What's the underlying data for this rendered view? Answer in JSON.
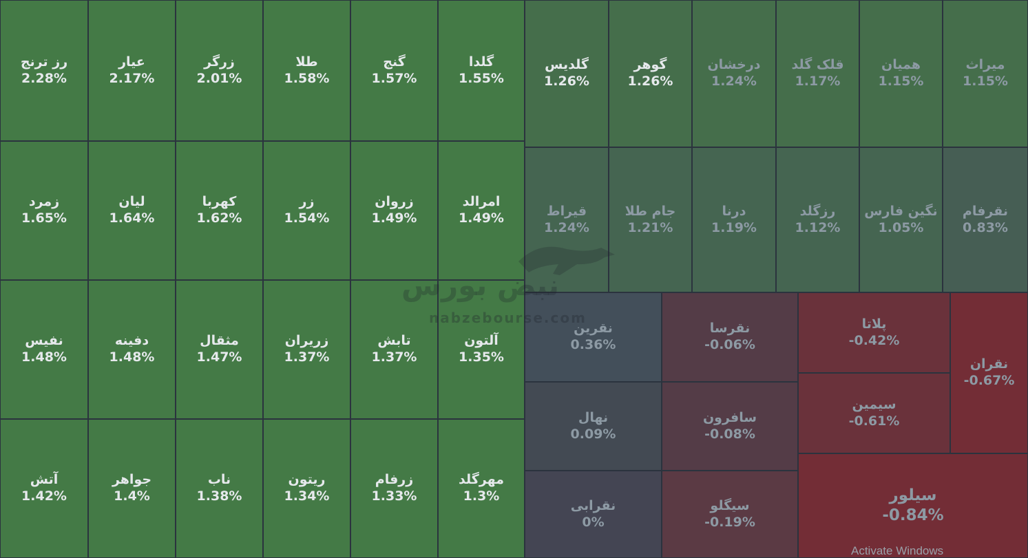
{
  "watermark": {
    "brand": "نبض بورس",
    "site": "nabzebourse.com"
  },
  "os_notice": "Activate Windows",
  "colors": {
    "background": "#2d3540",
    "green_strong": "#447a46",
    "green_mid": "#456e4b",
    "green_soft": "#456551",
    "green_faint": "#465e54",
    "slate_blue": "#434f5a",
    "slate": "#434a53",
    "neutral": "#444553",
    "red_faint": "#543c47",
    "red_soft": "#5b3a44",
    "red_mid": "#6a323b",
    "red_strong": "#732d36",
    "text_bright": "#e6e9ec",
    "text_dim": "#8d9aa4"
  },
  "tiles": [
    {
      "symbol": "رز ترنج",
      "change": "2.28%",
      "c": "green_strong",
      "t": "text_bright"
    },
    {
      "symbol": "عیار",
      "change": "2.17%",
      "c": "green_strong",
      "t": "text_bright"
    },
    {
      "symbol": "زرگر",
      "change": "2.01%",
      "c": "green_strong",
      "t": "text_bright"
    },
    {
      "symbol": "طلا",
      "change": "1.58%",
      "c": "green_strong",
      "t": "text_bright"
    },
    {
      "symbol": "گنج",
      "change": "1.57%",
      "c": "green_strong",
      "t": "text_bright"
    },
    {
      "symbol": "گلدا",
      "change": "1.55%",
      "c": "green_strong",
      "t": "text_bright"
    },
    {
      "symbol": "زمرد",
      "change": "1.65%",
      "c": "green_strong",
      "t": "text_bright"
    },
    {
      "symbol": "لیان",
      "change": "1.64%",
      "c": "green_strong",
      "t": "text_bright"
    },
    {
      "symbol": "کهربا",
      "change": "1.62%",
      "c": "green_strong",
      "t": "text_bright"
    },
    {
      "symbol": "زر",
      "change": "1.54%",
      "c": "green_strong",
      "t": "text_bright"
    },
    {
      "symbol": "زروان",
      "change": "1.49%",
      "c": "green_strong",
      "t": "text_bright"
    },
    {
      "symbol": "امرالد",
      "change": "1.49%",
      "c": "green_strong",
      "t": "text_bright"
    },
    {
      "symbol": "نفیس",
      "change": "1.48%",
      "c": "green_strong",
      "t": "text_bright"
    },
    {
      "symbol": "دفینه",
      "change": "1.48%",
      "c": "green_strong",
      "t": "text_bright"
    },
    {
      "symbol": "مثقال",
      "change": "1.47%",
      "c": "green_strong",
      "t": "text_bright"
    },
    {
      "symbol": "زریران",
      "change": "1.37%",
      "c": "green_strong",
      "t": "text_bright"
    },
    {
      "symbol": "تابش",
      "change": "1.37%",
      "c": "green_strong",
      "t": "text_bright"
    },
    {
      "symbol": "آلتون",
      "change": "1.35%",
      "c": "green_strong",
      "t": "text_bright"
    },
    {
      "symbol": "آتش",
      "change": "1.42%",
      "c": "green_strong",
      "t": "text_bright"
    },
    {
      "symbol": "جواهر",
      "change": "1.4%",
      "c": "green_strong",
      "t": "text_bright"
    },
    {
      "symbol": "ناب",
      "change": "1.38%",
      "c": "green_strong",
      "t": "text_bright"
    },
    {
      "symbol": "ریتون",
      "change": "1.34%",
      "c": "green_strong",
      "t": "text_bright"
    },
    {
      "symbol": "زرفام",
      "change": "1.33%",
      "c": "green_strong",
      "t": "text_bright"
    },
    {
      "symbol": "مهرگلد",
      "change": "1.3%",
      "c": "green_strong",
      "t": "text_bright"
    },
    {
      "symbol": "گلدیس",
      "change": "1.26%",
      "c": "green_mid",
      "t": "text_bright"
    },
    {
      "symbol": "گوهر",
      "change": "1.26%",
      "c": "green_mid",
      "t": "text_bright"
    },
    {
      "symbol": "درخشان",
      "change": "1.24%",
      "c": "green_mid",
      "t": "text_dim"
    },
    {
      "symbol": "قلک گلد",
      "change": "1.17%",
      "c": "green_mid",
      "t": "text_dim"
    },
    {
      "symbol": "همیان",
      "change": "1.15%",
      "c": "green_mid",
      "t": "text_dim"
    },
    {
      "symbol": "میراث",
      "change": "1.15%",
      "c": "green_mid",
      "t": "text_dim"
    },
    {
      "symbol": "قیراط",
      "change": "1.24%",
      "c": "green_soft",
      "t": "text_dim"
    },
    {
      "symbol": "جام طلا",
      "change": "1.21%",
      "c": "green_soft",
      "t": "text_dim"
    },
    {
      "symbol": "درنا",
      "change": "1.19%",
      "c": "green_soft",
      "t": "text_dim"
    },
    {
      "symbol": "رزگلد",
      "change": "1.12%",
      "c": "green_soft",
      "t": "text_dim"
    },
    {
      "symbol": "نگین فارس",
      "change": "1.05%",
      "c": "green_soft",
      "t": "text_dim"
    },
    {
      "symbol": "نقرفام",
      "change": "0.83%",
      "c": "green_faint",
      "t": "text_dim"
    },
    {
      "symbol": "نقرین",
      "change": "0.36%",
      "c": "slate_blue",
      "t": "text_dim"
    },
    {
      "symbol": "نهال",
      "change": "0.09%",
      "c": "slate",
      "t": "text_dim"
    },
    {
      "symbol": "نقرابی",
      "change": "0%",
      "c": "neutral",
      "t": "text_dim"
    },
    {
      "symbol": "نقرسا",
      "change": "-0.06%",
      "c": "red_faint",
      "t": "text_dim"
    },
    {
      "symbol": "سافرون",
      "change": "-0.08%",
      "c": "red_faint",
      "t": "text_dim"
    },
    {
      "symbol": "سیگلو",
      "change": "-0.19%",
      "c": "red_soft",
      "t": "text_dim"
    },
    {
      "symbol": "پلاتا",
      "change": "-0.42%",
      "c": "red_mid",
      "t": "text_dim"
    },
    {
      "symbol": "سیمین",
      "change": "-0.61%",
      "c": "red_mid",
      "t": "text_dim"
    },
    {
      "symbol": "نقران",
      "change": "-0.67%",
      "c": "red_strong",
      "t": "text_dim"
    },
    {
      "symbol": "سیلور",
      "change": "-0.84%",
      "c": "red_strong",
      "t": "text_dim"
    }
  ]
}
